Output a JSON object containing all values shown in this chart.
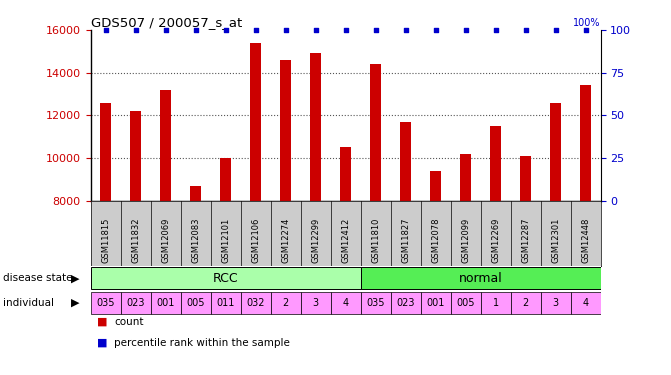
{
  "title": "GDS507 / 200057_s_at",
  "samples": [
    "GSM11815",
    "GSM11832",
    "GSM12069",
    "GSM12083",
    "GSM12101",
    "GSM12106",
    "GSM12274",
    "GSM12299",
    "GSM12412",
    "GSM11810",
    "GSM11827",
    "GSM12078",
    "GSM12099",
    "GSM12269",
    "GSM12287",
    "GSM12301",
    "GSM12448"
  ],
  "counts": [
    12600,
    12200,
    13200,
    8700,
    10000,
    15400,
    14600,
    14900,
    10500,
    14400,
    11700,
    9400,
    10200,
    11500,
    10100,
    12600,
    13400
  ],
  "ylim_left": [
    8000,
    16000
  ],
  "ylim_right": [
    0,
    100
  ],
  "yticks_left": [
    8000,
    10000,
    12000,
    14000,
    16000
  ],
  "yticks_right": [
    0,
    25,
    50,
    75,
    100
  ],
  "bar_color": "#CC0000",
  "percentile_color": "#0000CC",
  "dotted_values": [
    10000,
    12000,
    14000
  ],
  "disease_state": [
    "RCC",
    "RCC",
    "RCC",
    "RCC",
    "RCC",
    "RCC",
    "RCC",
    "RCC",
    "RCC",
    "normal",
    "normal",
    "normal",
    "normal",
    "normal",
    "normal",
    "normal",
    "normal"
  ],
  "individual": [
    "035",
    "023",
    "001",
    "005",
    "011",
    "032",
    "2",
    "3",
    "4",
    "035",
    "023",
    "001",
    "005",
    "1",
    "2",
    "3",
    "4"
  ],
  "rcc_color": "#AAFFAA",
  "normal_color": "#55EE55",
  "individual_color": "#FF99FF",
  "sample_bg_color": "#CCCCCC",
  "axis_color_left": "#CC0000",
  "axis_color_right": "#0000CC",
  "legend_count_color": "#CC0000",
  "legend_pct_color": "#0000CC"
}
